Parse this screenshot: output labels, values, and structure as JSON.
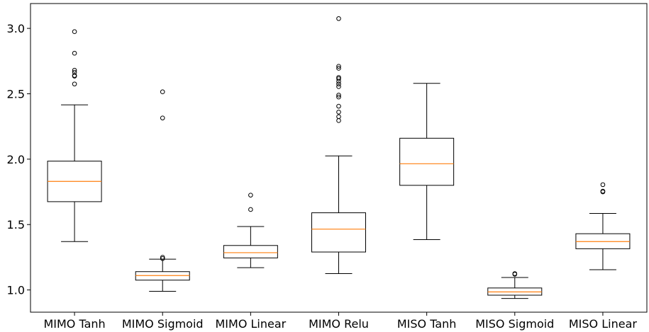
{
  "chart_data": {
    "type": "box",
    "title": "",
    "xlabel": "",
    "ylabel": "",
    "ylim": [
      0.83,
      3.19
    ],
    "yticks": [
      1.0,
      1.5,
      2.0,
      2.5,
      3.0
    ],
    "ytick_labels": [
      "1.0",
      "1.5",
      "2.0",
      "2.5",
      "3.0"
    ],
    "grid": false,
    "colors": {
      "box": "#000000",
      "median": "#ff7f0e",
      "axes": "#000000"
    },
    "categories": [
      "MIMO Tanh",
      "MIMO Sigmoid",
      "MIMO Linear",
      "MIMO Relu",
      "MISO Tanh",
      "MISO Sigmoid",
      "MISO Linear"
    ],
    "boxes": [
      {
        "name": "MIMO Tanh",
        "whisker_low": 1.37,
        "q1": 1.675,
        "median": 1.83,
        "q3": 1.985,
        "whisker_high": 2.415,
        "outliers": [
          2.575,
          2.635,
          2.64,
          2.665,
          2.68,
          2.81,
          2.975
        ]
      },
      {
        "name": "MIMO Sigmoid",
        "whisker_low": 0.99,
        "q1": 1.075,
        "median": 1.11,
        "q3": 1.14,
        "whisker_high": 1.235,
        "outliers": [
          1.24,
          1.25,
          2.315,
          2.515
        ]
      },
      {
        "name": "MIMO Linear",
        "whisker_low": 1.17,
        "q1": 1.245,
        "median": 1.285,
        "q3": 1.34,
        "whisker_high": 1.485,
        "outliers": [
          1.615,
          1.725
        ]
      },
      {
        "name": "MIMO Relu",
        "whisker_low": 1.125,
        "q1": 1.29,
        "median": 1.465,
        "q3": 1.59,
        "whisker_high": 2.025,
        "outliers": [
          2.295,
          2.325,
          2.36,
          2.405,
          2.475,
          2.49,
          2.555,
          2.575,
          2.595,
          2.615,
          2.625,
          2.695,
          2.71,
          3.075
        ]
      },
      {
        "name": "MISO Tanh",
        "whisker_low": 1.385,
        "q1": 1.8,
        "median": 1.965,
        "q3": 2.16,
        "whisker_high": 2.58,
        "outliers": []
      },
      {
        "name": "MISO Sigmoid",
        "whisker_low": 0.935,
        "q1": 0.96,
        "median": 0.985,
        "q3": 1.015,
        "whisker_high": 1.095,
        "outliers": [
          1.12,
          1.125
        ]
      },
      {
        "name": "MISO Linear",
        "whisker_low": 1.155,
        "q1": 1.315,
        "median": 1.37,
        "q3": 1.43,
        "whisker_high": 1.585,
        "outliers": [
          1.75,
          1.755,
          1.805
        ]
      }
    ]
  }
}
